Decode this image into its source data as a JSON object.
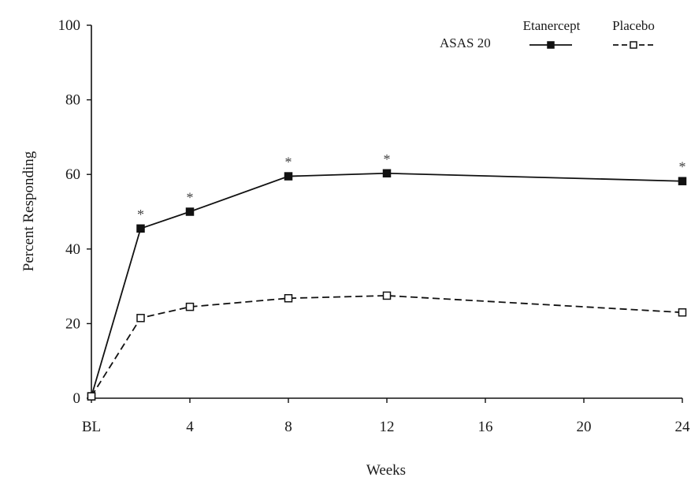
{
  "chart_data": {
    "type": "line",
    "xlabel": "Weeks",
    "ylabel": "Percent Responding",
    "ylim": [
      0,
      100
    ],
    "yticks": [
      "0",
      "20",
      "40",
      "60",
      "80",
      "100"
    ],
    "xlim": [
      0,
      24
    ],
    "xticks": [
      {
        "value": 0,
        "label": "BL"
      },
      {
        "value": 4,
        "label": "4"
      },
      {
        "value": 8,
        "label": "8"
      },
      {
        "value": 12,
        "label": "12"
      },
      {
        "value": 16,
        "label": "16"
      },
      {
        "value": 20,
        "label": "20"
      },
      {
        "value": 24,
        "label": "24"
      }
    ],
    "x": [
      0,
      2,
      4,
      8,
      12,
      24
    ],
    "legend_title": "ASAS 20",
    "legend_position": "top-right",
    "grid": false,
    "series": [
      {
        "name": "Etanercept",
        "values": [
          0.5,
          45.5,
          50,
          59.5,
          60.3,
          58.2
        ],
        "style": "solid",
        "marker": "filled-square",
        "color": "#111111"
      },
      {
        "name": "Placebo",
        "values": [
          0.5,
          21.5,
          24.5,
          26.8,
          27.5,
          23
        ],
        "style": "dashed",
        "marker": "open-square",
        "color": "#111111"
      }
    ],
    "annotations": {
      "symbol": "*",
      "x": [
        2,
        4,
        8,
        12,
        24
      ]
    }
  }
}
